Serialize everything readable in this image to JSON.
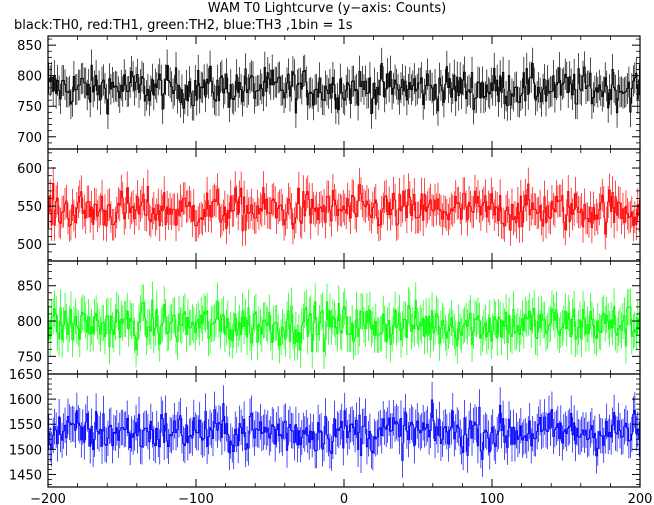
{
  "title": "WAM T0 Lightcurve (y−axis: Counts)",
  "subtitle": "black:TH0, red:TH1, green:TH2, blue:TH3 ,1bin = 1s",
  "chart_data": [
    {
      "type": "line",
      "series": [
        {
          "name": "TH0",
          "color": "#000000",
          "mean": 780,
          "amplitude": 30
        }
      ],
      "x_range": [
        -200,
        200
      ],
      "ylim": [
        680,
        865
      ],
      "yticks": [
        700,
        750,
        800,
        850
      ],
      "xticks": [
        -200,
        -100,
        0,
        100,
        200
      ],
      "step": "1s bins"
    },
    {
      "type": "line",
      "series": [
        {
          "name": "TH1",
          "color": "#ff0000",
          "mean": 545,
          "amplitude": 25
        }
      ],
      "x_range": [
        -200,
        200
      ],
      "ylim": [
        478,
        625
      ],
      "yticks": [
        500,
        550,
        600
      ],
      "xticks": [
        -200,
        -100,
        0,
        100,
        200
      ]
    },
    {
      "type": "line",
      "series": [
        {
          "name": "TH2",
          "color": "#00ff00",
          "mean": 795,
          "amplitude": 28
        }
      ],
      "x_range": [
        -200,
        200
      ],
      "ylim": [
        725,
        885
      ],
      "yticks": [
        750,
        800,
        850
      ],
      "xticks": [
        -200,
        -100,
        0,
        100,
        200
      ]
    },
    {
      "type": "line",
      "series": [
        {
          "name": "TH3",
          "color": "#0000ff",
          "mean": 1535,
          "amplitude": 40
        }
      ],
      "x_range": [
        -200,
        200
      ],
      "ylim": [
        1425,
        1650
      ],
      "yticks": [
        1450,
        1500,
        1550,
        1600,
        1650
      ],
      "xticks": [
        -200,
        -100,
        0,
        100,
        200
      ]
    }
  ]
}
